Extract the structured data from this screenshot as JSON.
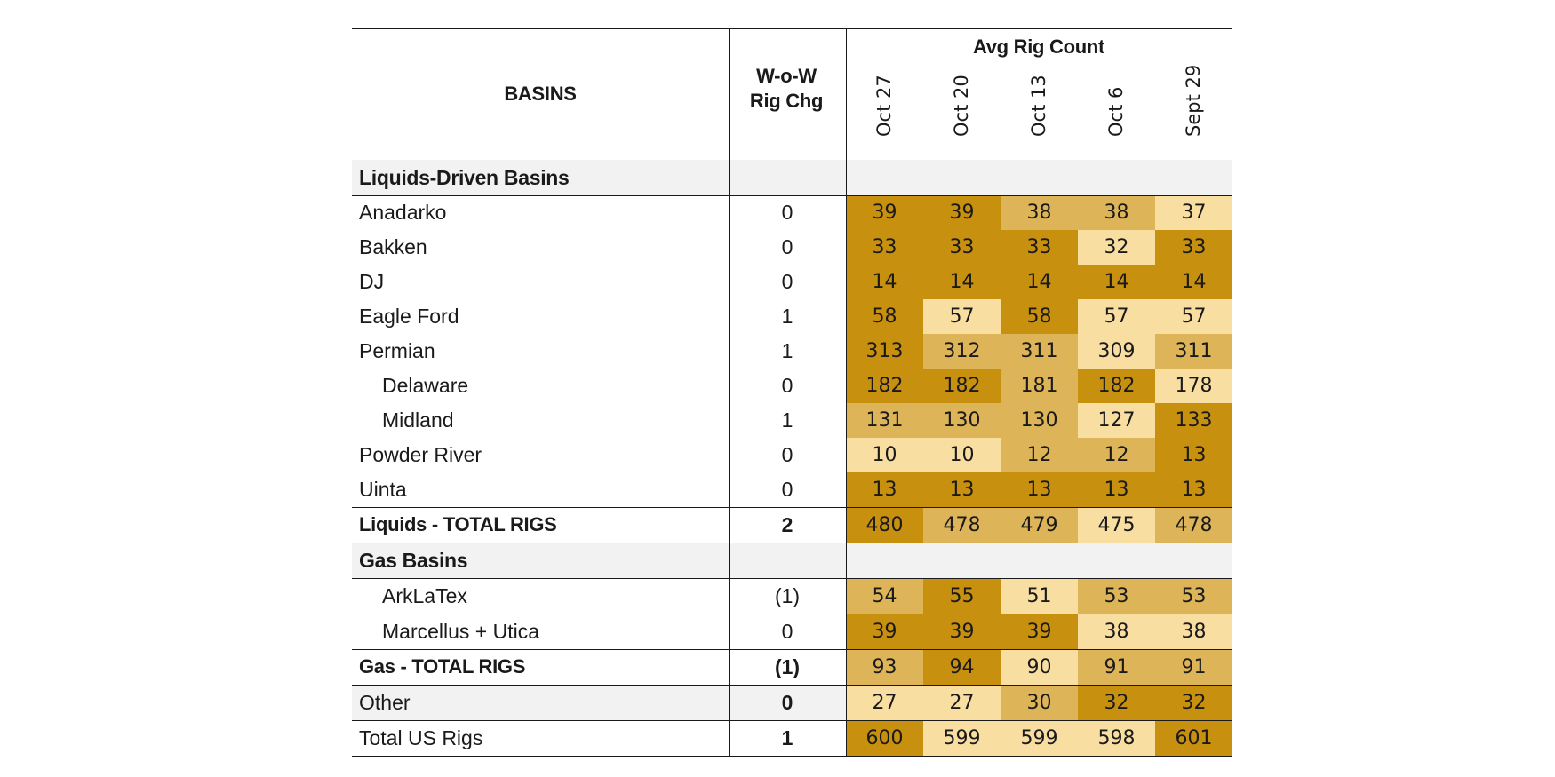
{
  "header": {
    "basins": "BASINS",
    "chg_line1": "W-o-W",
    "chg_line2": "Rig Chg",
    "avg_rig_count": "Avg Rig Count",
    "dates": [
      "Oct 27",
      "Oct 20",
      "Oct 13",
      "Oct 6",
      "Sept 29"
    ]
  },
  "colors": {
    "dark": "#c8900f",
    "medium": "#deb458",
    "light": "#f9dea2",
    "section_shade": "#f2f2f2",
    "rule": "#1a1a1a"
  },
  "rows": [
    {
      "label": "Liquids-Driven Basins",
      "type": "section",
      "change": "",
      "values": []
    },
    {
      "label": "Anadarko",
      "type": "basin",
      "change": "0",
      "values": [
        "39",
        "39",
        "38",
        "38",
        "37"
      ],
      "shade": [
        "dark",
        "dark",
        "medium",
        "medium",
        "light"
      ]
    },
    {
      "label": "Bakken",
      "type": "basin",
      "change": "0",
      "values": [
        "33",
        "33",
        "33",
        "32",
        "33"
      ],
      "shade": [
        "dark",
        "dark",
        "dark",
        "light",
        "dark"
      ]
    },
    {
      "label": "DJ",
      "type": "basin",
      "change": "0",
      "values": [
        "14",
        "14",
        "14",
        "14",
        "14"
      ],
      "shade": [
        "dark",
        "dark",
        "dark",
        "dark",
        "dark"
      ]
    },
    {
      "label": "Eagle Ford",
      "type": "basin",
      "change": "1",
      "values": [
        "58",
        "57",
        "58",
        "57",
        "57"
      ],
      "shade": [
        "dark",
        "light",
        "dark",
        "light",
        "light"
      ]
    },
    {
      "label": "Permian",
      "type": "basin",
      "change": "1",
      "values": [
        "313",
        "312",
        "311",
        "309",
        "311"
      ],
      "shade": [
        "dark",
        "medium",
        "medium",
        "light",
        "medium"
      ]
    },
    {
      "label": "Delaware",
      "type": "sub",
      "change": "0",
      "values": [
        "182",
        "182",
        "181",
        "182",
        "178"
      ],
      "shade": [
        "dark",
        "dark",
        "medium",
        "dark",
        "light"
      ]
    },
    {
      "label": "Midland",
      "type": "sub",
      "change": "1",
      "values": [
        "131",
        "130",
        "130",
        "127",
        "133"
      ],
      "shade": [
        "medium",
        "medium",
        "medium",
        "light",
        "dark"
      ]
    },
    {
      "label": "Powder River",
      "type": "basin",
      "change": "0",
      "values": [
        "10",
        "10",
        "12",
        "12",
        "13"
      ],
      "shade": [
        "light",
        "light",
        "medium",
        "medium",
        "dark"
      ]
    },
    {
      "label": "Uinta",
      "type": "basin",
      "change": "0",
      "values": [
        "13",
        "13",
        "13",
        "13",
        "13"
      ],
      "shade": [
        "dark",
        "dark",
        "dark",
        "dark",
        "dark"
      ]
    },
    {
      "label": "Liquids - TOTAL RIGS",
      "type": "total",
      "change": "2",
      "values": [
        "480",
        "478",
        "479",
        "475",
        "478"
      ],
      "shade": [
        "dark",
        "medium",
        "medium",
        "light",
        "medium"
      ]
    },
    {
      "label": "Gas Basins",
      "type": "section",
      "change": "",
      "values": []
    },
    {
      "label": "ArkLaTex",
      "type": "sub",
      "change": "(1)",
      "values": [
        "54",
        "55",
        "51",
        "53",
        "53"
      ],
      "shade": [
        "medium",
        "dark",
        "light",
        "medium",
        "medium"
      ]
    },
    {
      "label": "Marcellus + Utica",
      "type": "sub",
      "change": "0",
      "values": [
        "39",
        "39",
        "39",
        "38",
        "38"
      ],
      "shade": [
        "dark",
        "dark",
        "dark",
        "light",
        "light"
      ]
    },
    {
      "label": "Gas - TOTAL RIGS",
      "type": "total",
      "change": "(1)",
      "values": [
        "93",
        "94",
        "90",
        "91",
        "91"
      ],
      "shade": [
        "medium",
        "dark",
        "light",
        "medium",
        "medium"
      ]
    },
    {
      "label": "Other",
      "type": "other",
      "change": "0",
      "values": [
        "27",
        "27",
        "30",
        "32",
        "32"
      ],
      "shade": [
        "light",
        "light",
        "medium",
        "dark",
        "dark"
      ]
    },
    {
      "label": "Total US Rigs",
      "type": "grand",
      "change": "1",
      "values": [
        "600",
        "599",
        "599",
        "598",
        "601"
      ],
      "shade": [
        "dark",
        "light",
        "light",
        "light",
        "dark"
      ]
    }
  ]
}
